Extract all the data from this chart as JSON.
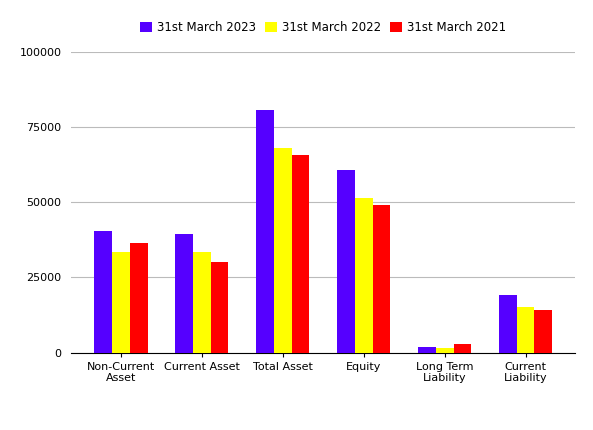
{
  "categories": [
    "Non-Current\nAsset",
    "Current Asset",
    "Total Asset",
    "Equity",
    "Long Term\nLiability",
    "Current\nLiability"
  ],
  "series": [
    {
      "label": "31st March 2023",
      "color": "#5500ff",
      "values": [
        40500,
        39500,
        80500,
        60500,
        2000,
        19000
      ]
    },
    {
      "label": "31st March 2022",
      "color": "#ffff00",
      "values": [
        33500,
        33500,
        68000,
        51500,
        1500,
        15000
      ]
    },
    {
      "label": "31st March 2021",
      "color": "#ff0000",
      "values": [
        36500,
        30000,
        65500,
        49000,
        2800,
        14000
      ]
    }
  ],
  "ylim": [
    0,
    100000
  ],
  "yticks": [
    0,
    25000,
    50000,
    75000,
    100000
  ],
  "bar_width": 0.22,
  "background_color": "#ffffff",
  "grid_color": "#bbbbbb",
  "legend_ncol": 3,
  "figsize": [
    5.93,
    4.3
  ],
  "dpi": 100
}
